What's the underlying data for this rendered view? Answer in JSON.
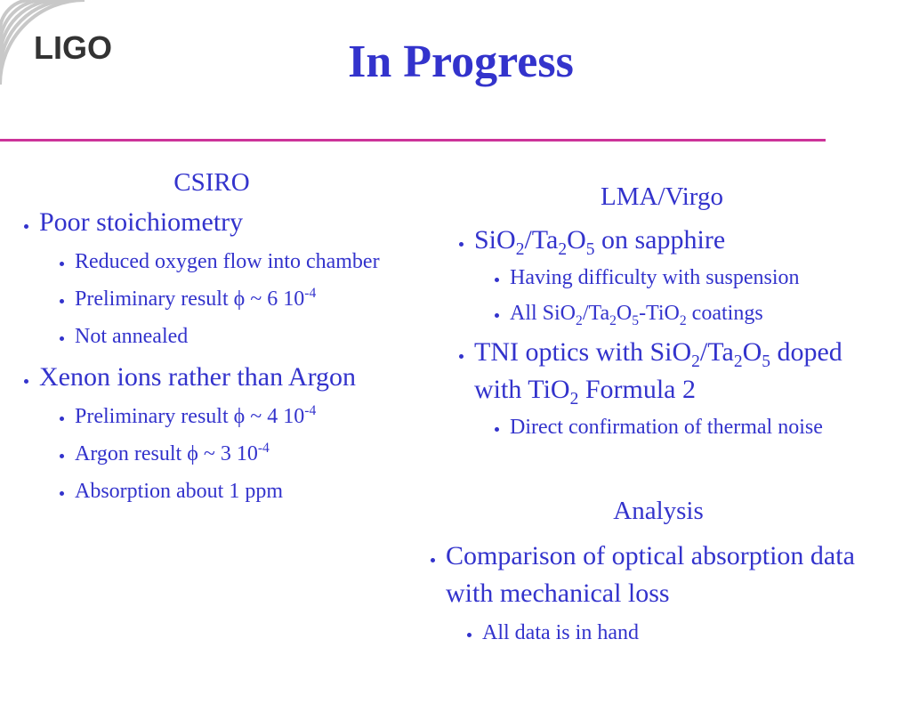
{
  "header": {
    "logo": "LIGO",
    "title": "In Progress"
  },
  "columns": [
    {
      "heading": "CSIRO",
      "items": [
        {
          "level": 1,
          "runs": [
            "Poor stoichiometry"
          ]
        },
        {
          "level": 2,
          "runs": [
            "Reduced oxygen flow into chamber"
          ]
        },
        {
          "level": 2,
          "runs": [
            "Preliminary result ϕ ~ 6 10",
            {
              "text": "-4",
              "style": "sup"
            }
          ]
        },
        {
          "level": 2,
          "runs": [
            "Not annealed"
          ]
        },
        {
          "level": 1,
          "runs": [
            "Xenon ions rather than Argon"
          ]
        },
        {
          "level": 2,
          "runs": [
            "Preliminary result ϕ ~ 4 10",
            {
              "text": "-4",
              "style": "sup"
            }
          ]
        },
        {
          "level": 2,
          "runs": [
            "Argon result ϕ ~ 3 10",
            {
              "text": "-4",
              "style": "sup"
            }
          ]
        },
        {
          "level": 2,
          "runs": [
            "Absorption about 1 ppm"
          ]
        }
      ]
    },
    {
      "heading": "LMA/Virgo",
      "items": [
        {
          "level": 1,
          "runs": [
            "SiO",
            {
              "text": "2",
              "style": "sub"
            },
            "/Ta",
            {
              "text": "2",
              "style": "sub"
            },
            "O",
            {
              "text": "5",
              "style": "sub"
            },
            " on sapphire"
          ]
        },
        {
          "level": 2,
          "runs": [
            "Having difficulty with suspension"
          ]
        },
        {
          "level": 2,
          "runs": [
            "All SiO",
            {
              "text": "2",
              "style": "sub"
            },
            "/Ta",
            {
              "text": "2",
              "style": "sub"
            },
            "O",
            {
              "text": "5",
              "style": "sub"
            },
            "-TiO",
            {
              "text": "2",
              "style": "sub"
            },
            " coatings"
          ]
        },
        {
          "level": 1,
          "runs": [
            "TNI optics with SiO",
            {
              "text": "2",
              "style": "sub"
            },
            "/Ta",
            {
              "text": "2",
              "style": "sub"
            },
            "O",
            {
              "text": "5",
              "style": "sub"
            },
            " doped with TiO",
            {
              "text": "2",
              "style": "sub"
            },
            " Formula 2"
          ]
        },
        {
          "level": 2,
          "runs": [
            "Direct confirmation of  thermal noise"
          ]
        }
      ]
    },
    {
      "heading": "Analysis",
      "items": [
        {
          "level": 1,
          "runs": [
            "Comparison of  optical absorption data with mechanical loss"
          ]
        },
        {
          "level": 2,
          "runs": [
            "All data is in hand"
          ]
        }
      ]
    }
  ]
}
